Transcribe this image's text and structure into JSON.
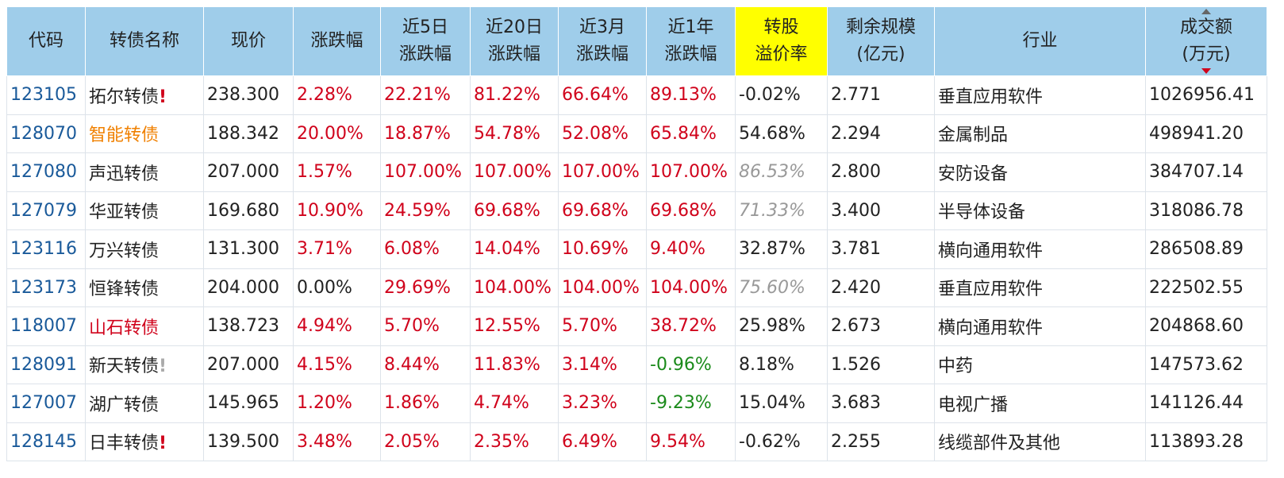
{
  "table": {
    "header": [
      "代码",
      "转债名称",
      "现价",
      "涨跌幅",
      "近5日\n涨跌幅",
      "近20日\n涨跌幅",
      "近3月\n涨跌幅",
      "近1年\n涨跌幅",
      "转股\n溢价率",
      "剩余规模\n(亿元)",
      "行业",
      "成交额\n(万元)"
    ],
    "highlight_header": 8,
    "sign_colored_columns": [
      3,
      4,
      5,
      6,
      7
    ],
    "rows": [
      [
        "123105",
        {
          "text": "拓尔转债",
          "mark": "!",
          "mark_color": "#d0021b"
        },
        "238.300",
        "2.28%",
        "22.21%",
        "81.22%",
        "66.64%",
        "89.13%",
        "-0.02%",
        "2.771",
        "垂直应用软件",
        "1026956.41"
      ],
      [
        "128070",
        {
          "text": "智能转债",
          "color": "#f08000"
        },
        "188.342",
        "20.00%",
        "18.87%",
        "54.78%",
        "52.08%",
        "65.84%",
        "54.68%",
        "2.294",
        "金属制品",
        "498941.20"
      ],
      [
        "127080",
        "声迅转债",
        "207.000",
        "1.57%",
        "107.00%",
        "107.00%",
        "107.00%",
        "107.00%",
        {
          "text": "86.53%",
          "color": "#999999",
          "italic": true
        },
        "2.800",
        "安防设备",
        "384707.14"
      ],
      [
        "127079",
        "华亚转债",
        "169.680",
        "10.90%",
        "24.59%",
        "69.68%",
        "69.68%",
        "69.68%",
        {
          "text": "71.33%",
          "color": "#999999",
          "italic": true
        },
        "3.400",
        "半导体设备",
        "318086.78"
      ],
      [
        "123116",
        "万兴转债",
        "131.300",
        "3.71%",
        "6.08%",
        "14.04%",
        "10.69%",
        "9.40%",
        "32.87%",
        "3.781",
        "横向通用软件",
        "286508.89"
      ],
      [
        "123173",
        "恒锋转债",
        "204.000",
        "0.00%",
        "29.69%",
        "104.00%",
        "104.00%",
        "104.00%",
        {
          "text": "75.60%",
          "color": "#999999",
          "italic": true
        },
        "2.420",
        "垂直应用软件",
        "222502.55"
      ],
      [
        "118007",
        {
          "text": "山石转债",
          "color": "#d0021b"
        },
        "138.723",
        "4.94%",
        "5.70%",
        "12.55%",
        "5.70%",
        "38.72%",
        "25.98%",
        "2.673",
        "横向通用软件",
        "204868.60"
      ],
      [
        "128091",
        {
          "text": "新天转债",
          "mark": "!",
          "mark_color": "#aaaaaa"
        },
        "207.000",
        "4.15%",
        "8.44%",
        "11.83%",
        "3.14%",
        "-0.96%",
        "8.18%",
        "1.526",
        "中药",
        "147573.62"
      ],
      [
        "127007",
        "湖广转债",
        "145.965",
        "1.20%",
        "1.86%",
        "4.74%",
        "3.23%",
        "-9.23%",
        "15.04%",
        "3.683",
        "电视广播",
        "141126.44"
      ],
      [
        "128145",
        {
          "text": "日丰转债",
          "mark": "!",
          "mark_color": "#d0021b"
        },
        "139.500",
        "3.48%",
        "2.05%",
        "2.35%",
        "6.49%",
        "9.54%",
        "-0.62%",
        "2.255",
        "线缆部件及其他",
        "113893.28"
      ]
    ]
  }
}
